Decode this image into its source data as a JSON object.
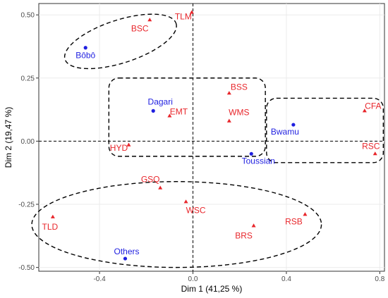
{
  "chart_data": {
    "type": "scatter",
    "xlabel": "Dim 1 (41,25 %)",
    "ylabel": "Dim 2 (19,47 %)",
    "xlim": [
      -0.66,
      0.82
    ],
    "ylim": [
      -0.515,
      0.545
    ],
    "x_ticks": [
      {
        "value": -0.4,
        "label": "-0.4"
      },
      {
        "value": 0.0,
        "label": "0.0"
      },
      {
        "value": 0.4,
        "label": "0.4"
      },
      {
        "value": 0.8,
        "label": "0.8"
      }
    ],
    "y_ticks": [
      {
        "value": 0.5,
        "label": "0.50"
      },
      {
        "value": 0.25,
        "label": "0.25"
      },
      {
        "value": 0.0,
        "label": "0.00"
      },
      {
        "value": -0.25,
        "label": "-0.25"
      },
      {
        "value": -0.5,
        "label": "-0.50"
      }
    ],
    "grid": true,
    "reference_lines": {
      "x": 0,
      "y": 0
    },
    "series": [
      {
        "marker": "circle",
        "color": "#1f1fe0",
        "points": [
          {
            "label": "Bôbô",
            "x": -0.46,
            "y": 0.37
          },
          {
            "label": "Dagari",
            "x": -0.17,
            "y": 0.12
          },
          {
            "label": "Bwamu",
            "x": 0.43,
            "y": 0.065
          },
          {
            "label": "Toussian",
            "x": 0.25,
            "y": -0.05
          },
          {
            "label": "Others",
            "x": -0.29,
            "y": -0.465
          }
        ]
      },
      {
        "marker": "triangle",
        "color": "#e8262b",
        "points": [
          {
            "label": "TLM",
            "x": -0.005,
            "y": 0.51
          },
          {
            "label": "BSC",
            "x": -0.185,
            "y": 0.48
          },
          {
            "label": "BSS",
            "x": 0.155,
            "y": 0.19
          },
          {
            "label": "EMT",
            "x": -0.1,
            "y": 0.1
          },
          {
            "label": "WMS",
            "x": 0.155,
            "y": 0.08
          },
          {
            "label": "CFA",
            "x": 0.735,
            "y": 0.12
          },
          {
            "label": "RSC",
            "x": 0.78,
            "y": -0.05
          },
          {
            "label": "HYD",
            "x": -0.275,
            "y": -0.015
          },
          {
            "label": "GSQ",
            "x": -0.14,
            "y": -0.185
          },
          {
            "label": "WSC",
            "x": -0.03,
            "y": -0.24
          },
          {
            "label": "TLD",
            "x": -0.6,
            "y": -0.3
          },
          {
            "label": "RSB",
            "x": 0.48,
            "y": -0.29
          },
          {
            "label": "BRS",
            "x": 0.26,
            "y": -0.335
          }
        ]
      }
    ],
    "groups": [
      {
        "shape": "ellipse",
        "cx": -0.31,
        "cy": 0.395,
        "rx": 0.25,
        "ry": 0.085,
        "angle": 18
      },
      {
        "shape": "rect",
        "x0": -0.36,
        "x1": 0.31,
        "y0": -0.06,
        "y1": 0.25
      },
      {
        "shape": "rect",
        "x0": 0.315,
        "x1": 0.815,
        "y0": -0.085,
        "y1": 0.17
      },
      {
        "shape": "ellipse",
        "cx": -0.07,
        "cy": -0.33,
        "rx": 0.62,
        "ry": 0.17,
        "angle": 0
      }
    ]
  }
}
